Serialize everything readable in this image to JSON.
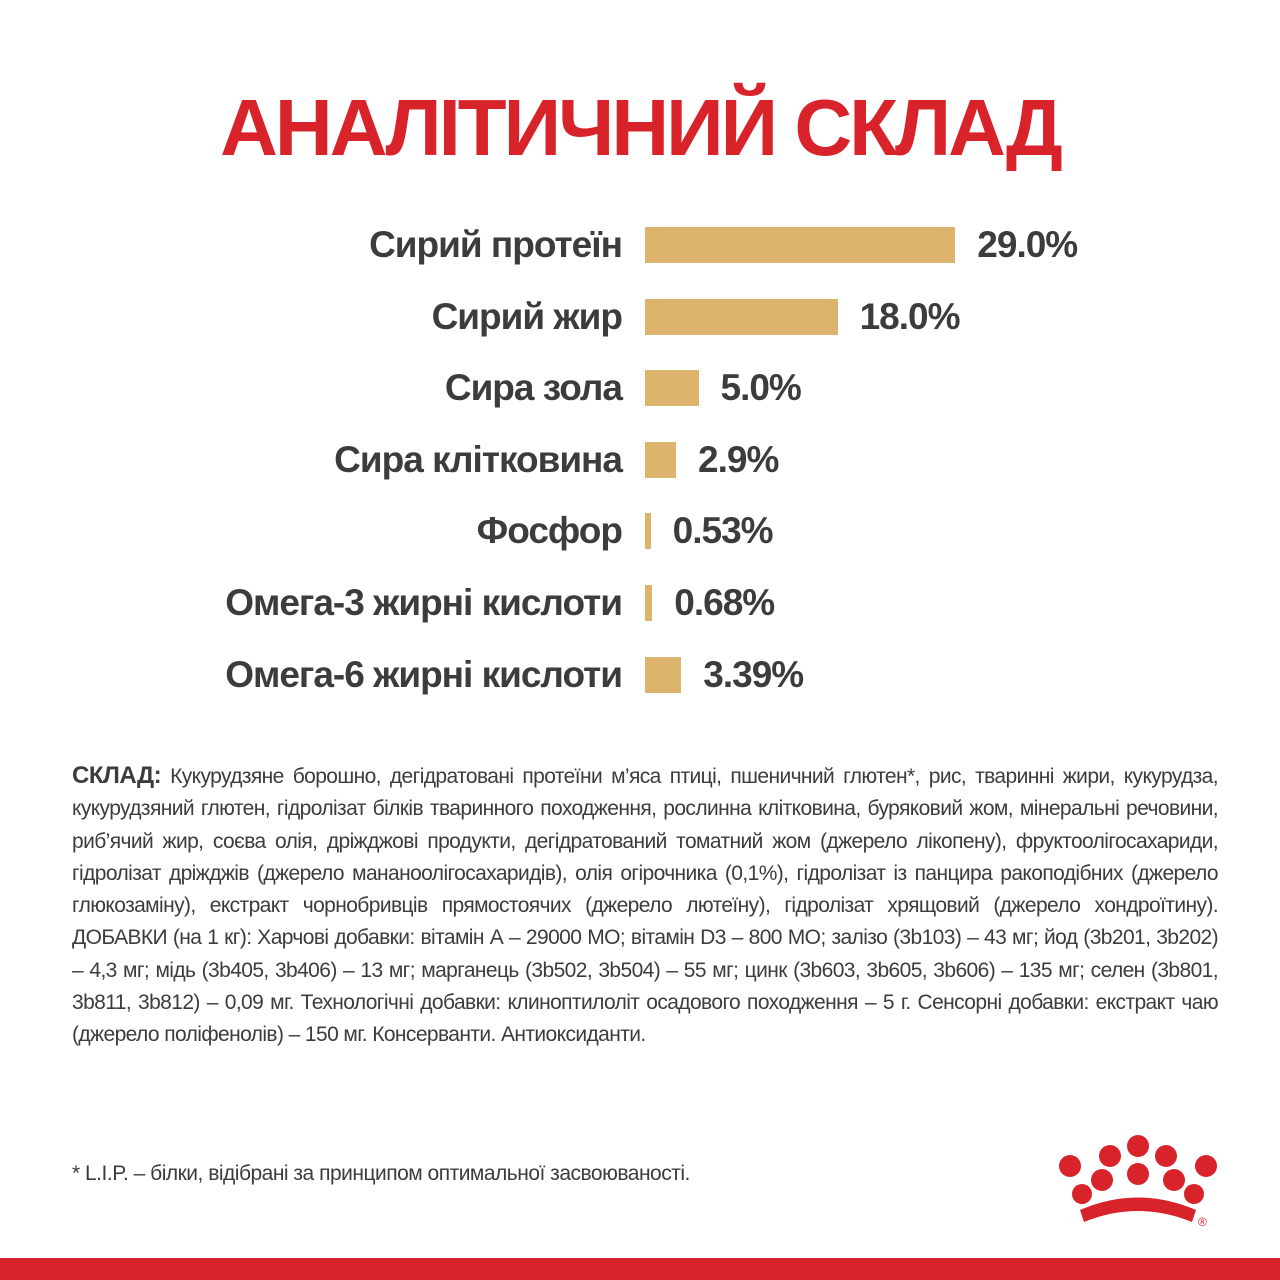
{
  "title": "АНАЛІТИЧНИЙ СКЛАД",
  "chart_data": {
    "type": "bar",
    "orientation": "horizontal",
    "title": "АНАЛІТИЧНИЙ СКЛАД",
    "categories": [
      "Сирий протеїн",
      "Сирий жир",
      "Сира зола",
      "Сира клітковина",
      "Фосфор",
      "Омега-3 жирні кислоти",
      "Омега-6 жирні кислоти"
    ],
    "values": [
      29.0,
      18.0,
      5.0,
      2.9,
      0.53,
      0.68,
      3.39
    ],
    "value_labels": [
      "29.0%",
      "18.0%",
      "5.0%",
      "2.9%",
      "0.53%",
      "0.68%",
      "3.39%"
    ],
    "unit": "%",
    "bar_color": "#dcb46e",
    "grid": false,
    "axes_visible": false
  },
  "composition": {
    "label": "СКЛАД:",
    "text": " Кукурудзяне борошно, дегідратовані протеїни м’яса птиці, пшеничний глютен*, рис, тваринні жири, кукурудза, кукурудзяний глютен, гідролізат білків тваринного походження, рослинна клітковина, буряковий жом, мінеральні речовини, риб’ячий жир, соєва олія, дріжджові продукти, дегідратований томатний жом (джерело лікопену), фруктоолігосахариди, гідролізат дріжджів (джерело мананоолігосахаридів), олія огірочника (0,1%), гідролізат із панцира ракоподібних (джерело глюкозаміну), екстракт чорнобривців прямостоячих (джерело лютеїну), гідролізат хрящовий (джерело хондроїтину). ДОБАВКИ (на 1 кг): Харчові добавки: вітамін А – 29000 МО; вітамін D3 – 800 МО; залізо (3b103) – 43 мг; йод (3b201, 3b202) – 4,3 мг; мідь (3b405, 3b406) – 13 мг; марганець (3b502, 3b504) – 55 мг; цинк (3b603, 3b605, 3b606) – 135 мг; селен (3b801, 3b811, 3b812) – 0,09 мг. Технологічні добавки: клиноптилоліт осадового походження – 5 г. Сенсорні добавки: екстракт чаю (джерело поліфенолів) – 150 мг. Консерванти. Антиоксиданти."
  },
  "footnote": "* L.I.P. – білки, відібрані за принципом оптимальної засвоюваності.",
  "logo": {
    "name": "crown-logo",
    "color": "#d9232a",
    "mark": "®"
  },
  "colors": {
    "accent": "#d9232a",
    "text": "#3c3c3c",
    "bar": "#dcb46e"
  }
}
